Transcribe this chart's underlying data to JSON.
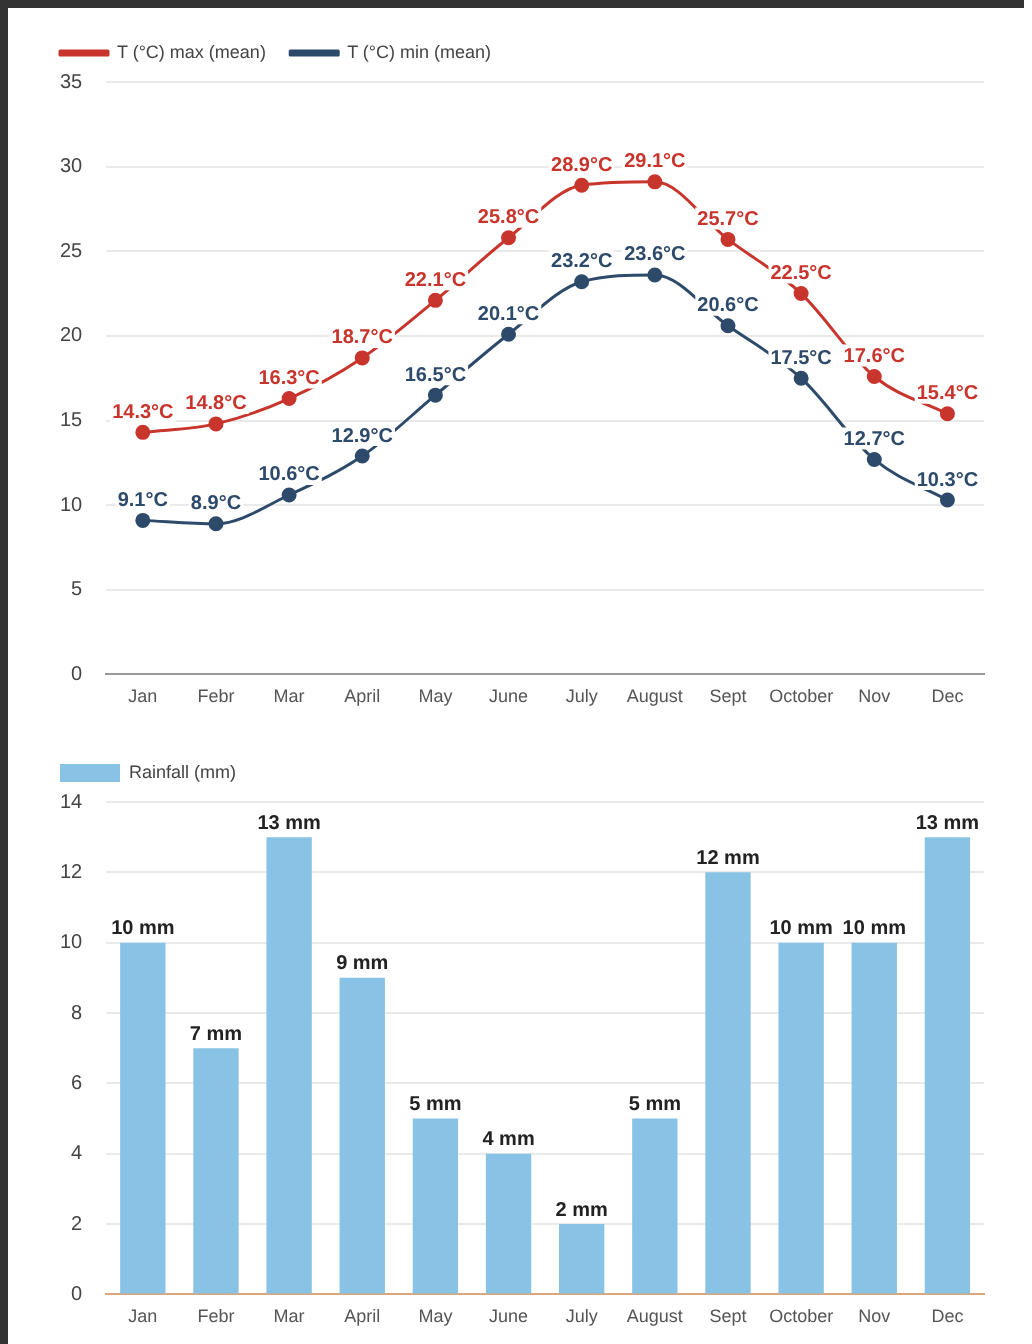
{
  "chart_data": [
    {
      "type": "line",
      "categories": [
        "Jan",
        "Febr",
        "Mar",
        "April",
        "May",
        "June",
        "July",
        "August",
        "Sept",
        "October",
        "Nov",
        "Dec"
      ],
      "series": [
        {
          "name": "T (°C) max (mean)",
          "color": "#c8352d",
          "values": [
            14.3,
            14.8,
            16.3,
            18.7,
            22.1,
            25.8,
            28.9,
            29.1,
            25.7,
            22.5,
            17.6,
            15.4
          ],
          "value_labels": [
            "14.3°C",
            "14.8°C",
            "16.3°C",
            "18.7°C",
            "22.1°C",
            "25.8°C",
            "28.9°C",
            "29.1°C",
            "25.7°C",
            "22.5°C",
            "17.6°C",
            "15.4°C"
          ]
        },
        {
          "name": "T (°C) min (mean)",
          "color": "#2d4a6b",
          "values": [
            9.1,
            8.9,
            10.6,
            12.9,
            16.5,
            20.1,
            23.2,
            23.6,
            20.6,
            17.5,
            12.7,
            10.3
          ],
          "value_labels": [
            "9.1°C",
            "8.9°C",
            "10.6°C",
            "12.9°C",
            "16.5°C",
            "20.1°C",
            "23.2°C",
            "23.6°C",
            "20.6°C",
            "17.5°C",
            "12.7°C",
            "10.3°C"
          ]
        }
      ],
      "ylim": [
        0,
        35
      ],
      "yticks": [
        0,
        5,
        10,
        15,
        20,
        25,
        30,
        35
      ],
      "grid": "y",
      "legend": "top left",
      "marker": "circle",
      "line_style": "solid"
    },
    {
      "type": "bar",
      "categories": [
        "Jan",
        "Febr",
        "Mar",
        "April",
        "May",
        "June",
        "July",
        "August",
        "Sept",
        "October",
        "Nov",
        "Dec"
      ],
      "series": [
        {
          "name": "Rainfall (mm)",
          "color": "#88c3e6",
          "values": [
            10,
            7,
            13,
            9,
            5,
            4,
            2,
            5,
            12,
            10,
            10,
            13
          ],
          "value_labels": [
            "10 mm",
            "7 mm",
            "13 mm",
            "9 mm",
            "5 mm",
            "4 mm",
            "2 mm",
            "5 mm",
            "12 mm",
            "10 mm",
            "10 mm",
            "13 mm"
          ]
        }
      ],
      "ylim": [
        0,
        14
      ],
      "yticks": [
        0,
        2,
        4,
        6,
        8,
        10,
        12,
        14
      ],
      "grid": "y",
      "legend": "top left"
    }
  ]
}
